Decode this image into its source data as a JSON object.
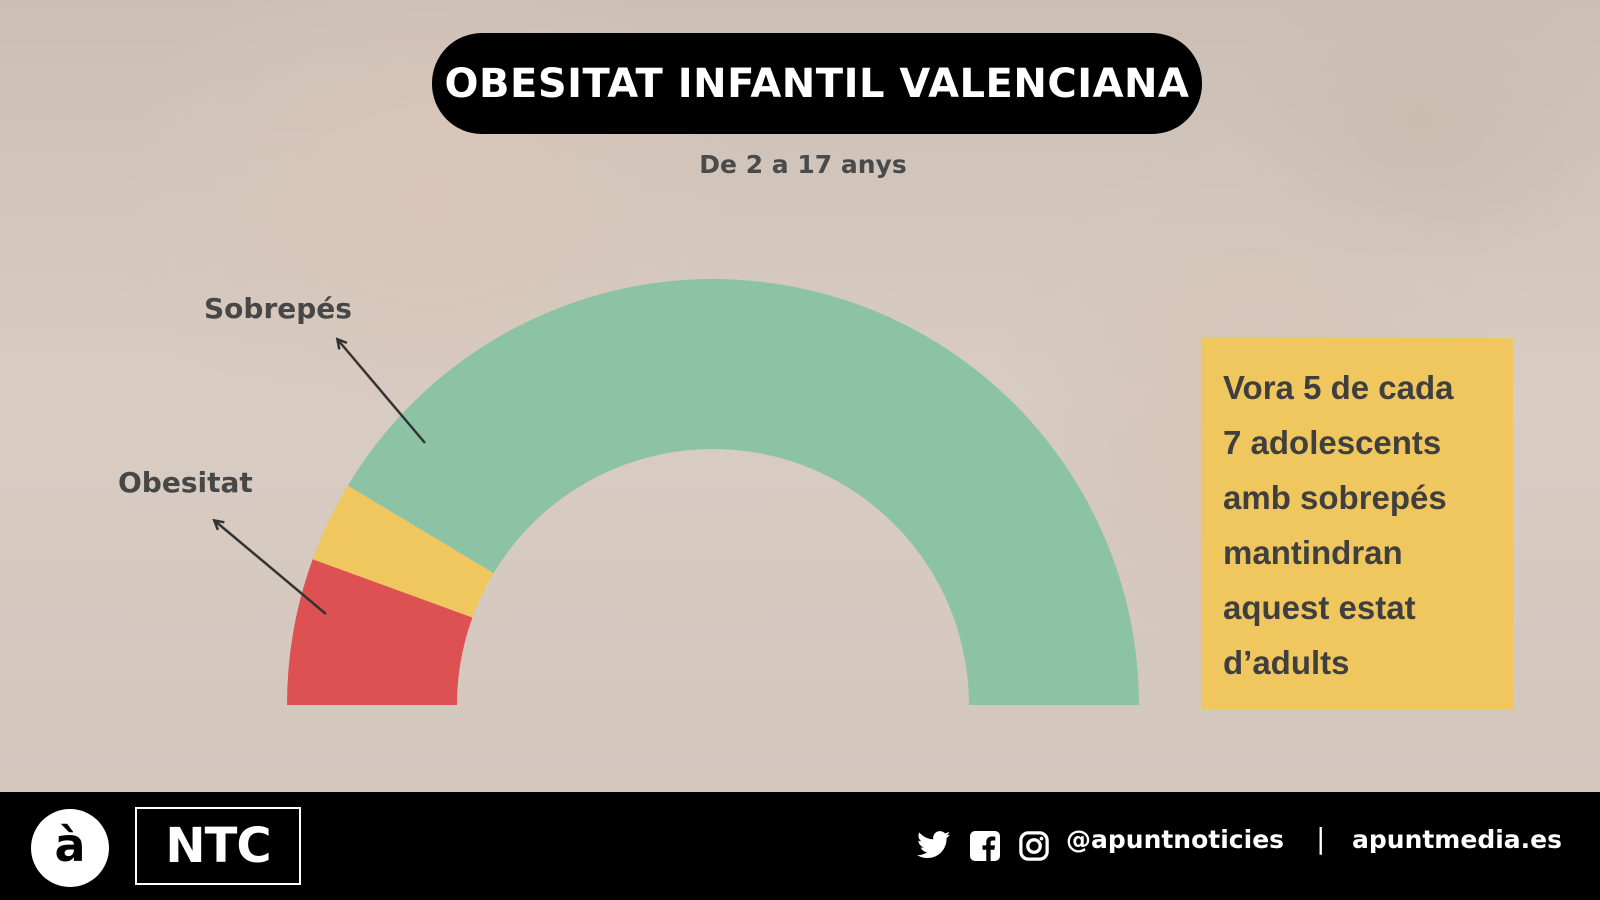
{
  "title": "OBESITAT INFANTIL VALENCIANA",
  "subtitle": "De 2 a 17 anys",
  "chart_data": {
    "type": "pie",
    "variant": "semicircle-donut",
    "categories": [
      "Obesitat",
      "Sobrepés",
      ""
    ],
    "values": [
      20,
      11,
      149
    ],
    "value_unit": "degrees of half circle (approx.)",
    "colors": [
      "#dd5153",
      "#f0c75f",
      "#8cc3a5"
    ],
    "labels": [
      "Obesitat",
      "Sobrepés"
    ]
  },
  "callout": {
    "lines": [
      "Vora 5 de cada",
      "7 adolescents",
      "amb sobrepés",
      "mantindran",
      "aquest estat",
      "d’adults"
    ],
    "background": "#f0c75f"
  },
  "footer": {
    "logo_letter": "à",
    "logo_brand": "NTC",
    "social_icons": [
      "twitter-icon",
      "facebook-icon",
      "instagram-icon"
    ],
    "handle": "@apuntnoticies",
    "separator": "|",
    "website": "apuntmedia.es"
  }
}
